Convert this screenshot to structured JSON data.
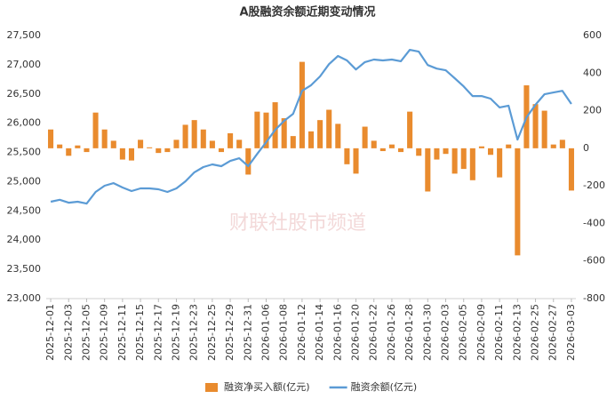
{
  "chart_data": {
    "type": "bar-line",
    "title": "A股融资余额近期变动情况",
    "watermark": "财联社股市频道",
    "categories": [
      "2025-12-01",
      null,
      "2025-12-03",
      null,
      "2025-12-05",
      null,
      "2025-12-09",
      null,
      "2025-12-11",
      null,
      "2025-12-15",
      null,
      "2025-12-17",
      null,
      "2025-12-19",
      null,
      "2025-12-23",
      null,
      "2025-12-25",
      null,
      "2025-12-29",
      null,
      "2025-12-31",
      null,
      "2026-01-06",
      null,
      "2026-01-08",
      null,
      "2026-01-12",
      null,
      "2026-01-14",
      null,
      "2026-01-16",
      null,
      "2026-01-20",
      null,
      "2026-01-22",
      null,
      "2026-01-26",
      null,
      "2026-01-28",
      null,
      "2026-01-30",
      null,
      "2026-02-03",
      null,
      "2026-02-05",
      null,
      "2026-02-09",
      null,
      "2026-02-11",
      null,
      "2026-02-13",
      null,
      "2026-02-25",
      null,
      "2026-02-27",
      null,
      "2026-03-03"
    ],
    "series": [
      {
        "name": "融资净买入额(亿元)",
        "type": "bar",
        "axis": "y2",
        "color": "#e98b2e",
        "values": [
          100,
          20,
          -40,
          15,
          -20,
          190,
          100,
          40,
          -60,
          -65,
          45,
          5,
          -25,
          -20,
          45,
          125,
          150,
          100,
          40,
          -20,
          80,
          45,
          -140,
          195,
          190,
          245,
          160,
          65,
          460,
          90,
          150,
          205,
          130,
          -85,
          -135,
          115,
          40,
          -15,
          20,
          -20,
          195,
          -40,
          -230,
          -60,
          -30,
          -135,
          -110,
          -170,
          10,
          -35,
          -155,
          20,
          -570,
          335,
          235,
          200,
          20,
          45,
          -225
        ]
      },
      {
        "name": "融资余额(亿元)",
        "type": "line",
        "color": "#5b9bd5",
        "values": [
          24657,
          24690,
          24640,
          24657,
          24625,
          24825,
          24930,
          24975,
          24900,
          24840,
          24885,
          24885,
          24870,
          24825,
          24885,
          25005,
          25160,
          25250,
          25295,
          25265,
          25355,
          25400,
          25265,
          25475,
          25675,
          25885,
          26040,
          26160,
          26555,
          26650,
          26800,
          27010,
          27150,
          27075,
          26920,
          27045,
          27090,
          27075,
          27090,
          27060,
          27255,
          27225,
          26995,
          26935,
          26905,
          26770,
          26630,
          26465,
          26465,
          26420,
          26270,
          26300,
          25720,
          26100,
          26315,
          26495,
          26525,
          26555,
          26330
        ]
      }
    ],
    "ylim": [
      23000,
      27500
    ],
    "yticks": [
      {
        "value": 23000,
        "label": "23,000"
      },
      {
        "value": 23500,
        "label": "23,500"
      },
      {
        "value": 24000,
        "label": "24,000"
      },
      {
        "value": 24500,
        "label": "24,500"
      },
      {
        "value": 25000,
        "label": "25,000"
      },
      {
        "value": 25500,
        "label": "25,500"
      },
      {
        "value": 26000,
        "label": "26,000"
      },
      {
        "value": 26500,
        "label": "26,500"
      },
      {
        "value": 27000,
        "label": "27,000"
      },
      {
        "value": 27500,
        "label": "27,500"
      }
    ],
    "y2lim": [
      -800,
      600
    ],
    "y2ticks": [
      -800,
      -600,
      -400,
      -200,
      0,
      200,
      400,
      600
    ],
    "grid": false,
    "legend": "bottom"
  }
}
